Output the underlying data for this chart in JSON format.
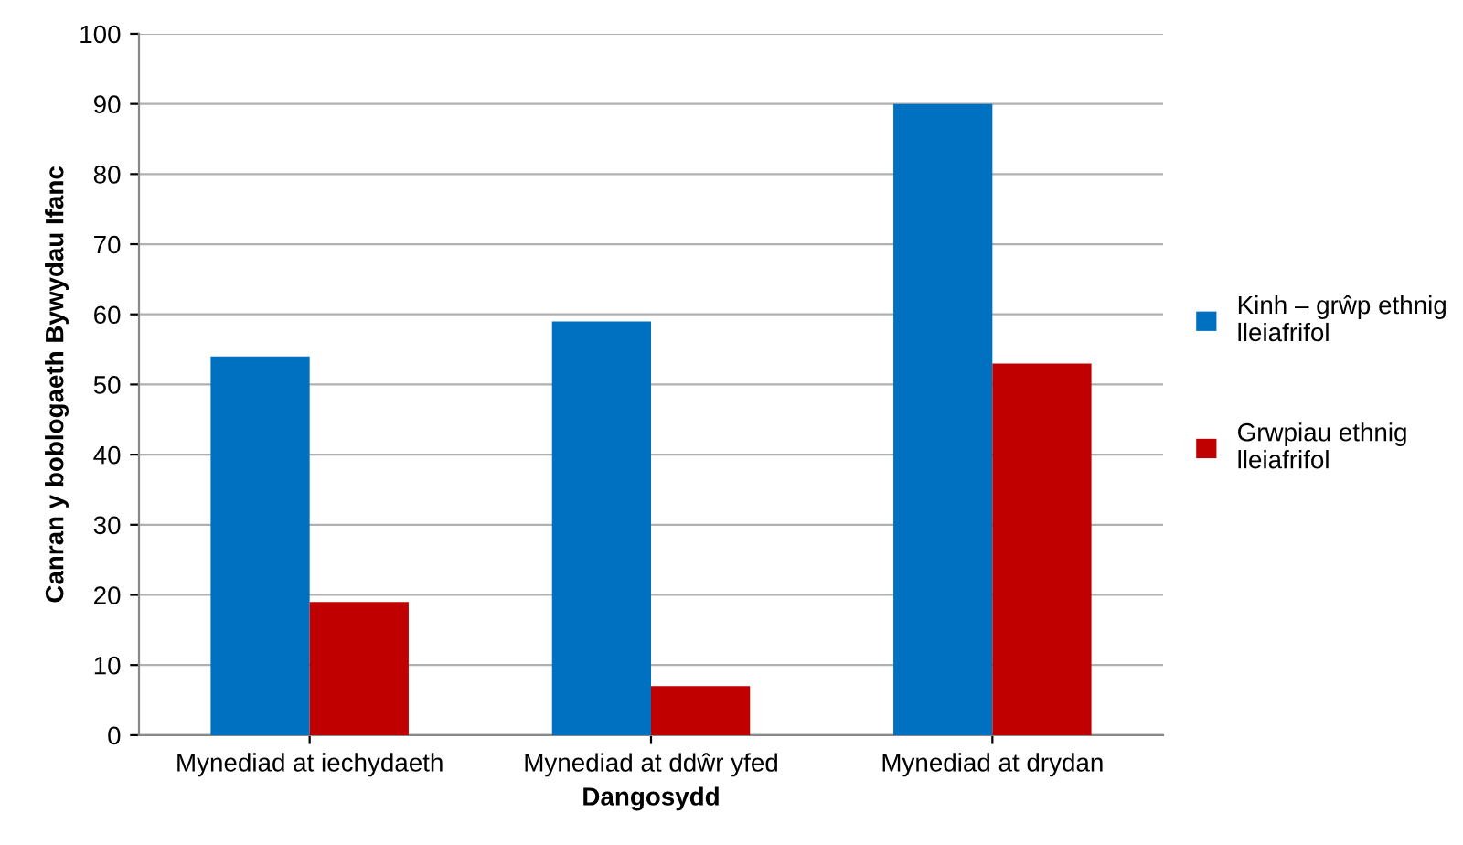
{
  "chart_data": {
    "type": "bar",
    "xlabel": "Dangosydd",
    "ylabel": "Canran y boblogaeth Bywydau Ifanc",
    "categories": [
      "Mynediad at iechydaeth",
      "Mynediad at ddŵr yfed",
      "Mynediad at drydan"
    ],
    "series": [
      {
        "name": "Kinh – grŵp ethnig lleiafrifol",
        "color": "#0070c0",
        "values": [
          54,
          59,
          90
        ]
      },
      {
        "name": "Grwpiau ethnig lleiafrifol",
        "color": "#c00000",
        "values": [
          19,
          7,
          53
        ]
      }
    ],
    "ylim": [
      0,
      100
    ],
    "yticks": [
      0,
      10,
      20,
      30,
      40,
      50,
      60,
      70,
      80,
      90,
      100
    ],
    "grid": "y",
    "legend": "right"
  }
}
